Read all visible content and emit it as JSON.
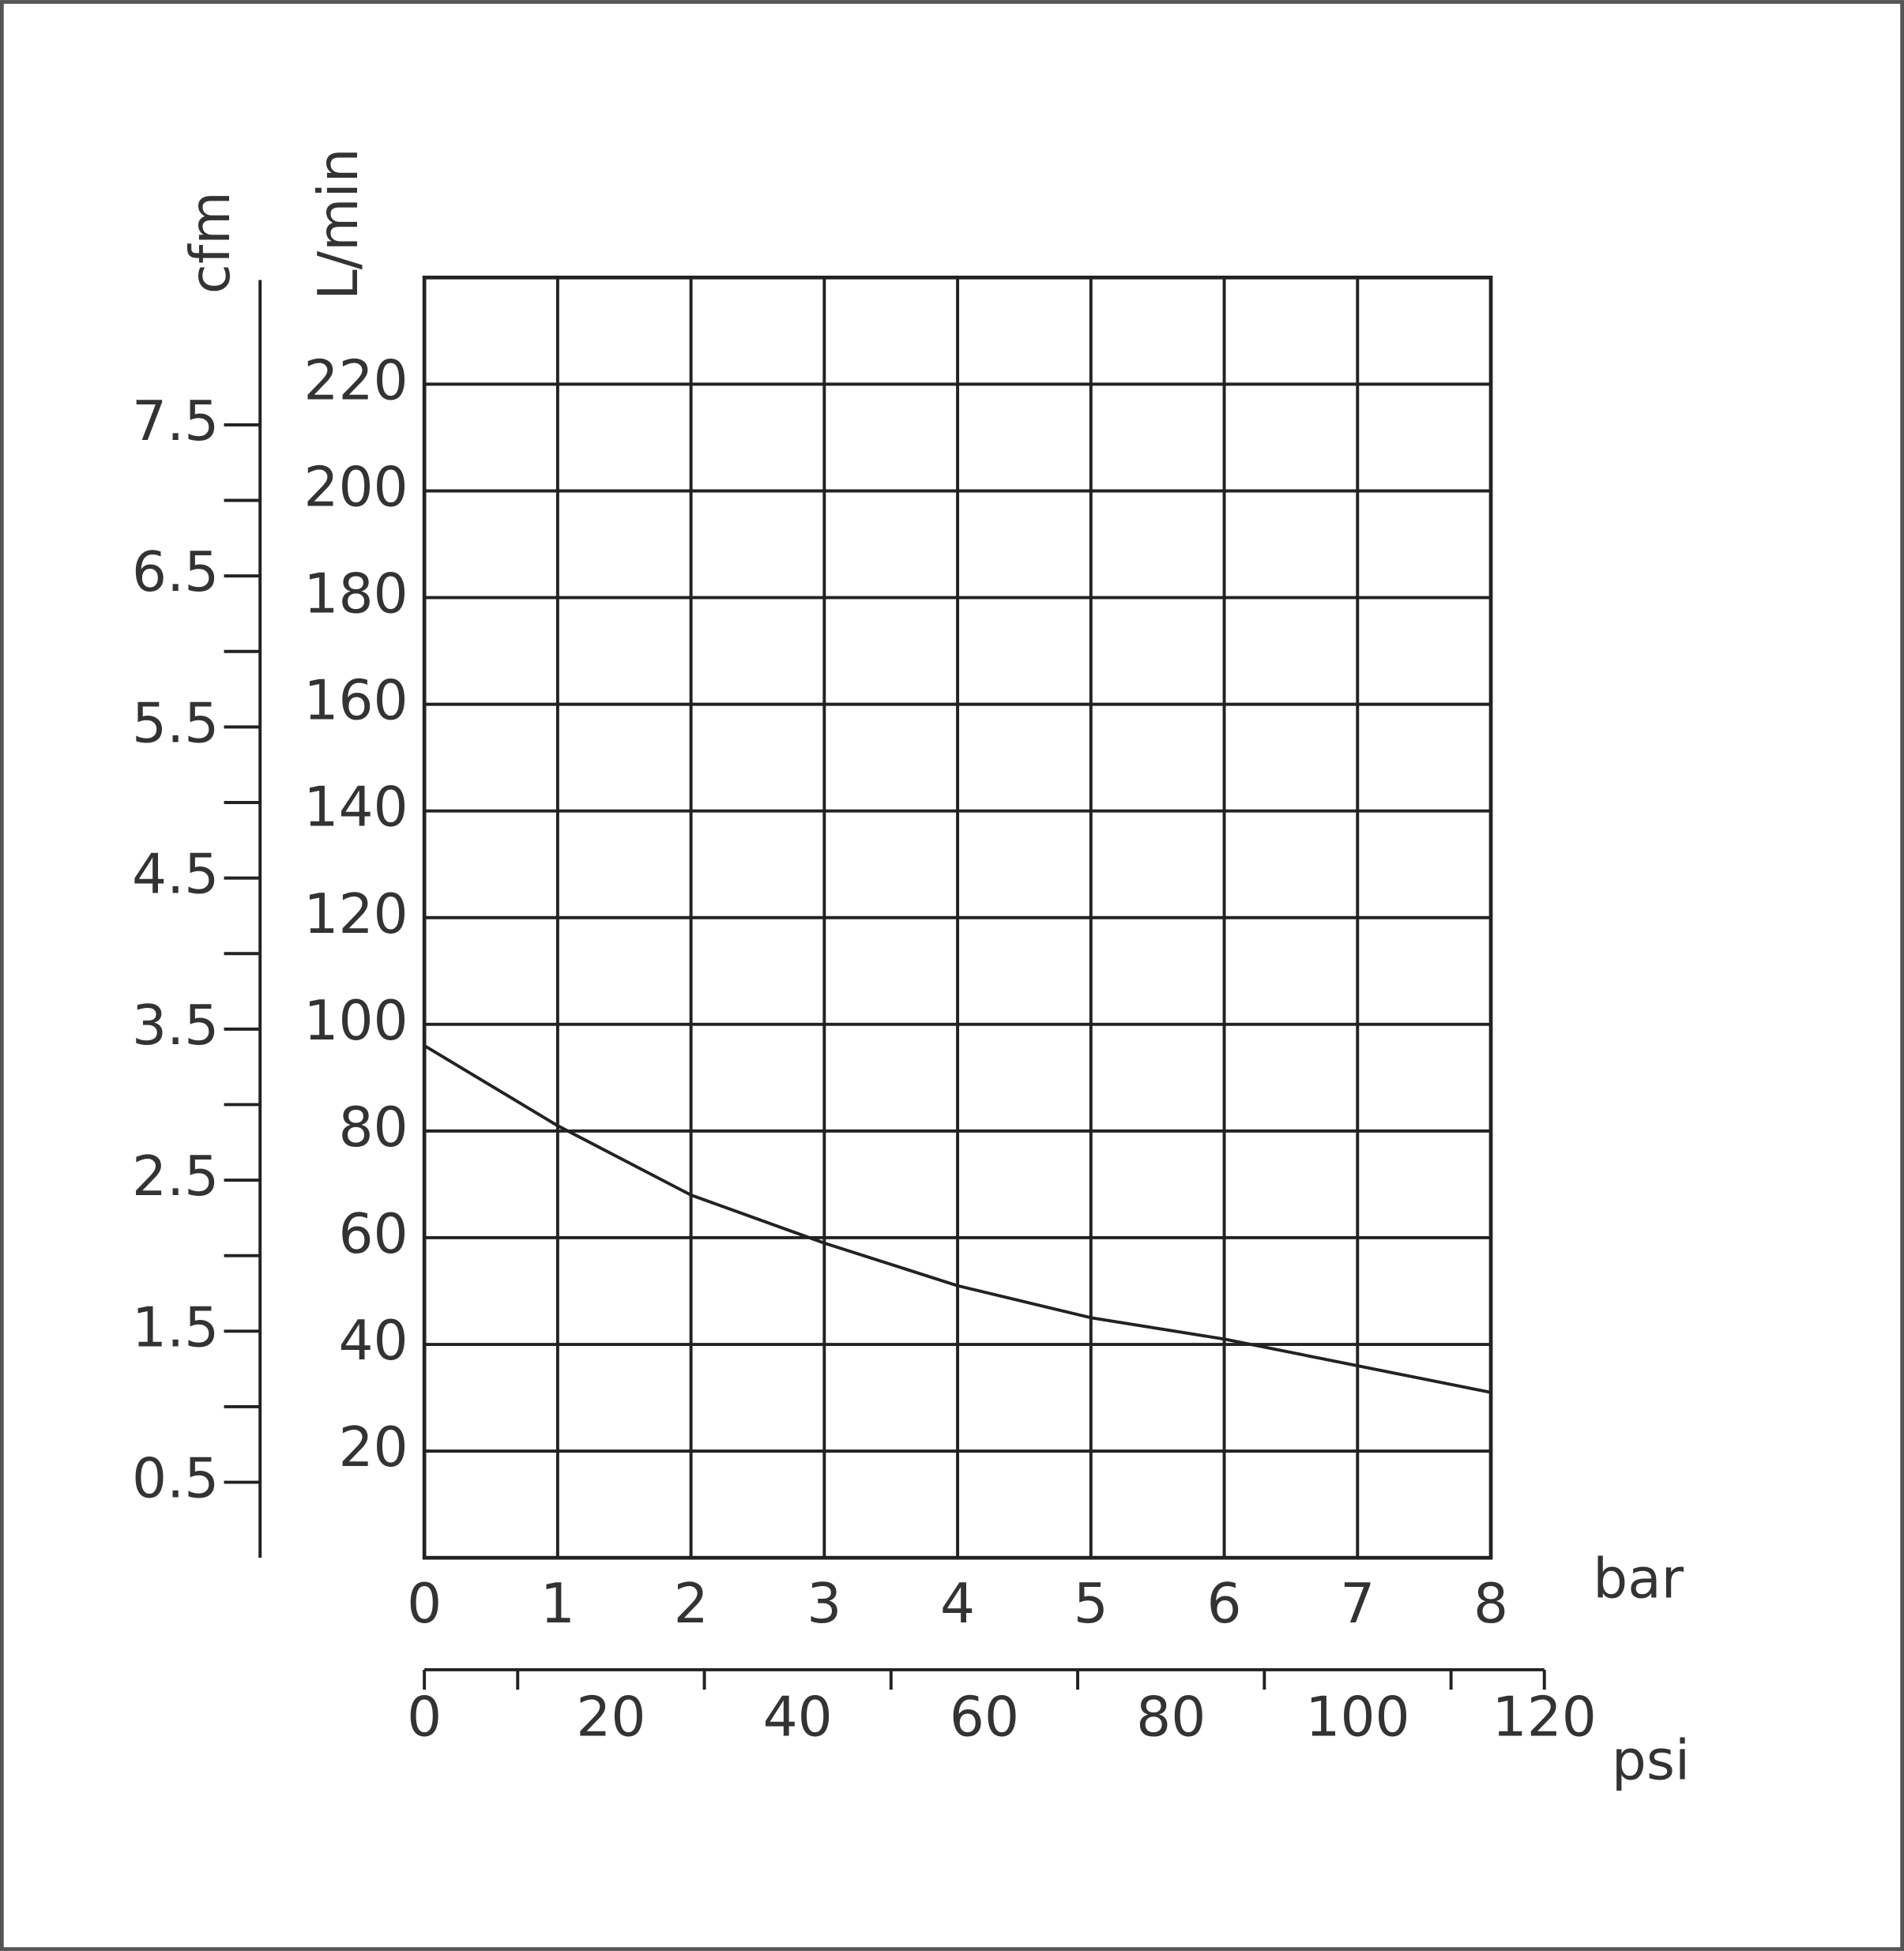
{
  "chart_data": {
    "type": "line",
    "x": [
      0,
      1,
      2,
      3,
      4,
      5,
      6,
      7,
      8
    ],
    "values": [
      96,
      81,
      68,
      59,
      51,
      45,
      41,
      36,
      31
    ],
    "color": "#222",
    "xlabel": "bar",
    "ylabel": "L/min",
    "y2label": "cfm",
    "x2label": "psi",
    "xlim": [
      0,
      8
    ],
    "xticks": [
      0,
      1,
      2,
      3,
      4,
      5,
      6,
      7,
      8
    ],
    "ylim": [
      0,
      240
    ],
    "yticks": [
      20,
      40,
      60,
      80,
      100,
      120,
      140,
      160,
      180,
      200,
      220
    ],
    "y2lim": [
      0,
      8.5
    ],
    "y2ticks": [
      0.5,
      1.5,
      2.5,
      3.5,
      4.5,
      5.5,
      6.5,
      7.5
    ],
    "y2minorticks": [
      1,
      2,
      3,
      4,
      5,
      6,
      7
    ],
    "x2lim": [
      0,
      120
    ],
    "x2ticks": [
      0,
      20,
      40,
      60,
      80,
      100,
      120
    ],
    "x2minorticks": [
      10,
      30,
      50,
      70,
      90,
      110
    ],
    "grid": true
  }
}
